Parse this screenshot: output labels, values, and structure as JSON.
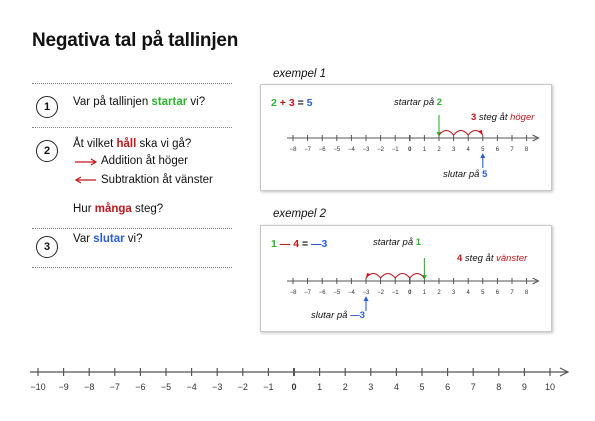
{
  "title": "Negativa tal på tallinjen",
  "steps": [
    {
      "num": "1",
      "before": "Var på tallinjen ",
      "highlight": "startar",
      "after": " vi?"
    },
    {
      "num": "2",
      "before": "Åt vilket ",
      "highlight": "håll",
      "after": " ska vi gå?"
    },
    {
      "num": "3",
      "before": "Var ",
      "highlight": "slutar",
      "after": " vi?"
    }
  ],
  "direction": {
    "addition": "Addition åt höger",
    "subtraction": "Subtraktion åt vänster"
  },
  "how_many": {
    "before": "Hur ",
    "highlight": "många",
    "after": " steg?"
  },
  "example1": {
    "title": "exempel 1",
    "eq": {
      "a": "2",
      "op": "+",
      "b": "3",
      "eqsign": "=",
      "result": "5"
    },
    "start_text": "startar på ",
    "start_num": "2",
    "steps_num": "3",
    "steps_text": " steg åt ",
    "steps_dir": "höger",
    "end_text": "slutar på ",
    "end_num": "5",
    "axis_min": -8,
    "axis_max": 8,
    "start": 2,
    "end": 5
  },
  "example2": {
    "title": "exempel 2",
    "eq": {
      "a": "1",
      "op": "—",
      "b": "4",
      "eqsign": "=",
      "result": "—3"
    },
    "start_text": "startar på ",
    "start_num": "1",
    "steps_num": "4",
    "steps_text": " steg åt ",
    "steps_dir": "vänster",
    "end_text": "slutar på ",
    "end_num": "—3",
    "axis_min": -8,
    "axis_max": 8,
    "start": 1,
    "end": -3
  },
  "bottom_line": {
    "min": -10,
    "max": 10
  },
  "colors": {
    "green": "#2db52d",
    "red": "#c0171c",
    "blue": "#2b5fd9"
  }
}
